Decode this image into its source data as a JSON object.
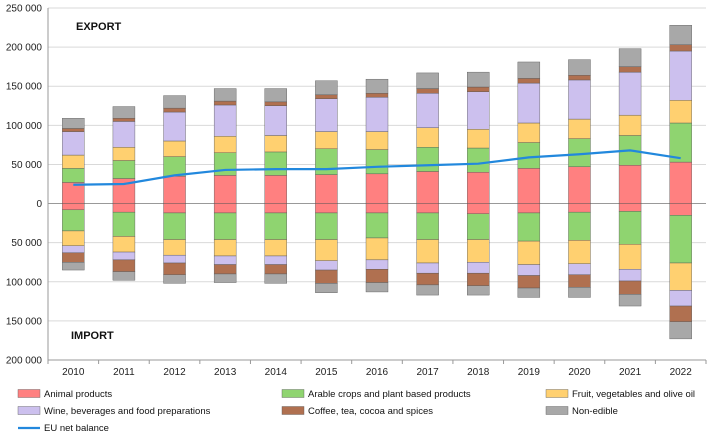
{
  "chart_data": {
    "type": "bar",
    "categories": [
      "2010",
      "2011",
      "2012",
      "2013",
      "2014",
      "2015",
      "2016",
      "2017",
      "2018",
      "2019",
      "2020",
      "2021",
      "2022"
    ],
    "ylim": [
      -200000,
      250000
    ],
    "y_ticks": [
      250000,
      200000,
      150000,
      100000,
      50000,
      0,
      -50000,
      -100000,
      -150000,
      -200000
    ],
    "y_tick_labels": [
      "250 000",
      "200 000",
      "150 000",
      "100 000",
      "50 000",
      "0",
      "50 000",
      "100 000",
      "150 000",
      "200 000"
    ],
    "grid": true,
    "region_labels": {
      "export": "EXPORT",
      "import": "IMPORT"
    },
    "series": [
      {
        "name": "Animal products",
        "color": "#ff8080",
        "export": [
          27000,
          32000,
          35000,
          36000,
          36000,
          37000,
          38000,
          41000,
          40000,
          45000,
          47000,
          49000,
          53000
        ],
        "import": [
          -8000,
          -11000,
          -12000,
          -12000,
          -12000,
          -12000,
          -12000,
          -12000,
          -13000,
          -12000,
          -11000,
          -10000,
          -15000
        ]
      },
      {
        "name": "Arable crops and plant based products",
        "color": "#8fd470",
        "export": [
          18000,
          23000,
          25000,
          29000,
          30000,
          33000,
          31000,
          31000,
          31000,
          33000,
          36000,
          38000,
          50000
        ],
        "import": [
          -27000,
          -31000,
          -34000,
          -34000,
          -34000,
          -34000,
          -32000,
          -34000,
          -33000,
          -36000,
          -36000,
          -42000,
          -61000
        ]
      },
      {
        "name": "Fruit, vegetables and olive oil",
        "color": "#ffd070",
        "export": [
          17000,
          17000,
          20000,
          21000,
          21000,
          22000,
          23000,
          25000,
          24000,
          25000,
          25000,
          26000,
          29000
        ],
        "import": [
          -19000,
          -20000,
          -20000,
          -21000,
          -21000,
          -27000,
          -28000,
          -30000,
          -29000,
          -30000,
          -30000,
          -32000,
          -35000
        ]
      },
      {
        "name": "Wine, beverages and food preparations",
        "color": "#ccc0ee",
        "export": [
          30000,
          33000,
          37000,
          40000,
          38000,
          42000,
          44000,
          44000,
          48000,
          51000,
          50000,
          55000,
          63000
        ],
        "import": [
          -9000,
          -10000,
          -10000,
          -11000,
          -11000,
          -12000,
          -12000,
          -13000,
          -14000,
          -14000,
          -14000,
          -15000,
          -20000
        ]
      },
      {
        "name": "Coffee, tea, cocoa and spices",
        "color": "#b07050",
        "export": [
          4000,
          4000,
          5000,
          5000,
          5000,
          5000,
          5000,
          6000,
          6000,
          6000,
          6000,
          7000,
          8000
        ],
        "import": [
          -12000,
          -15000,
          -15000,
          -12000,
          -12000,
          -17000,
          -17000,
          -15000,
          -16000,
          -16000,
          -16000,
          -17000,
          -20000
        ]
      },
      {
        "name": "Non-edible",
        "color": "#a8a8a8",
        "export": [
          13000,
          15000,
          16000,
          16000,
          17000,
          18000,
          18000,
          20000,
          19000,
          21000,
          20000,
          23000,
          25000
        ],
        "import": [
          -10000,
          -11000,
          -11000,
          -11000,
          -12000,
          -12000,
          -12000,
          -13000,
          -12000,
          -12000,
          -13000,
          -15000,
          -22000
        ]
      }
    ],
    "line": {
      "name": "EU net balance",
      "color": "#2288dd",
      "values": [
        24000,
        25000,
        36000,
        43000,
        44000,
        44000,
        47000,
        49000,
        51000,
        59000,
        63000,
        68000,
        58000
      ]
    }
  }
}
